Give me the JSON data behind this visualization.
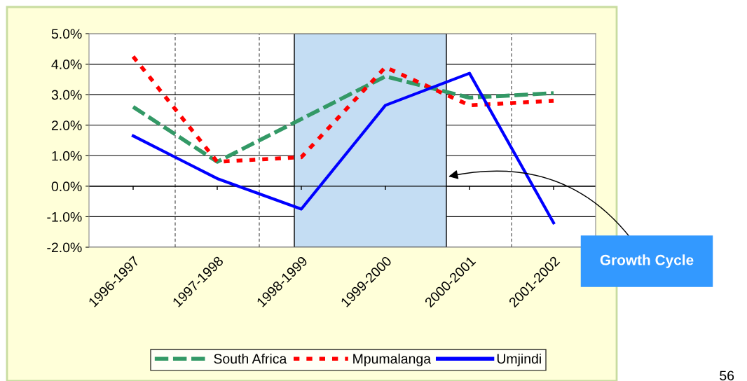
{
  "chart_data": {
    "type": "line",
    "categories": [
      "1996-1997",
      "1997-1998",
      "1998-1999",
      "1999-2000",
      "2000-2001",
      "2001-2002"
    ],
    "series": [
      {
        "name": "South Africa",
        "color": "#339966",
        "line_style": "dashed",
        "values": [
          2.6,
          0.8,
          2.2,
          3.6,
          2.9,
          3.05
        ]
      },
      {
        "name": "Mpumalanga",
        "color": "#ff0000",
        "line_style": "dotted",
        "values": [
          4.25,
          0.8,
          0.95,
          3.9,
          2.65,
          2.8
        ]
      },
      {
        "name": "Umjindi",
        "color": "#0000ff",
        "line_style": "solid",
        "values": [
          1.65,
          0.25,
          -0.75,
          2.65,
          3.7,
          -1.2
        ]
      }
    ],
    "ylim": [
      -2,
      5
    ],
    "yticks": [
      {
        "value": -2,
        "label": "-2.0%"
      },
      {
        "value": -1,
        "label": "-1.0%"
      },
      {
        "value": 0,
        "label": "0.0%"
      },
      {
        "value": 1,
        "label": "1.0%"
      },
      {
        "value": 2,
        "label": "2.0%"
      },
      {
        "value": 3,
        "label": "3.0%"
      },
      {
        "value": 4,
        "label": "4.0%"
      },
      {
        "value": 5,
        "label": "5.0%"
      }
    ],
    "grid": true,
    "legend": "bottom",
    "marker": "none",
    "annotations": [
      "Growth Cycle",
      "56"
    ]
  }
}
